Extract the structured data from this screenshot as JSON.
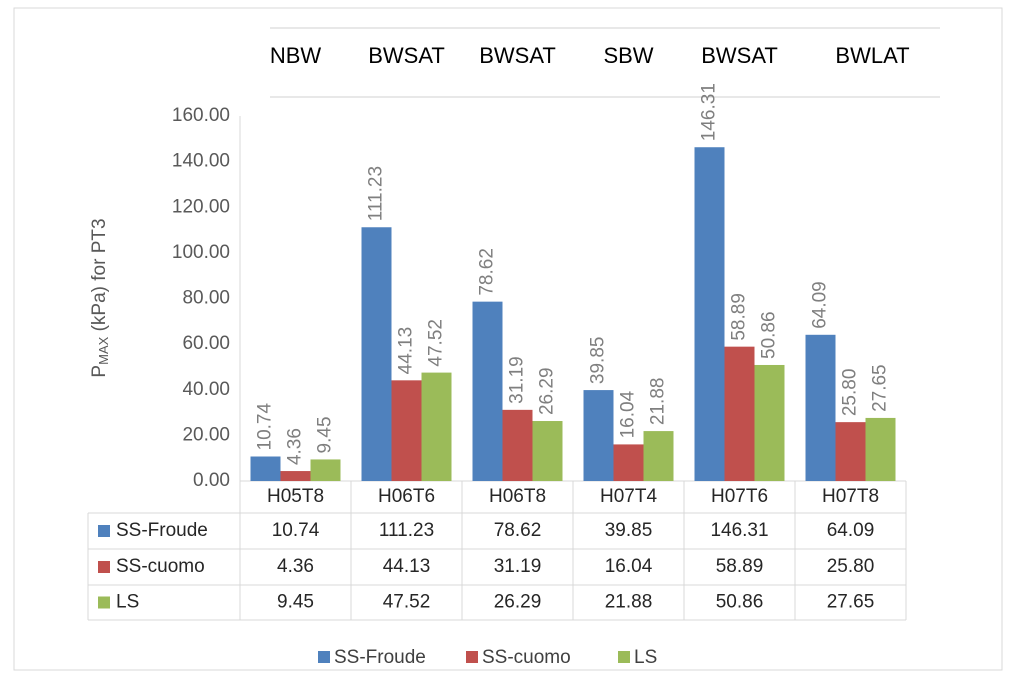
{
  "chart_data": {
    "type": "bar",
    "group_labels": [
      "NBW",
      "BWSAT",
      "BWSAT",
      "SBW",
      "BWSAT",
      "BWLAT"
    ],
    "ylabel_parts": [
      "P",
      "MAX",
      " (kPa) for PT3"
    ],
    "categories": [
      "H05T8",
      "H06T6",
      "H06T8",
      "H07T4",
      "H07T6",
      "H07T8"
    ],
    "series": [
      {
        "name": "SS-Froude",
        "color": "#4f81bd",
        "values": [
          10.74,
          111.23,
          78.62,
          39.85,
          146.31,
          64.09
        ],
        "value_labels": [
          "10.74",
          "111.23",
          "78.62",
          "39.85",
          "146.31",
          "64.09"
        ]
      },
      {
        "name": "SS-cuomo",
        "color": "#c0504d",
        "values": [
          4.36,
          44.13,
          31.19,
          16.04,
          58.89,
          25.8
        ],
        "value_labels": [
          "4.36",
          "44.13",
          "31.19",
          "16.04",
          "58.89",
          "25.80"
        ]
      },
      {
        "name": "LS",
        "color": "#9bbb59",
        "values": [
          9.45,
          47.52,
          26.29,
          21.88,
          50.86,
          27.65
        ],
        "value_labels": [
          "9.45",
          "47.52",
          "26.29",
          "21.88",
          "50.86",
          "27.65"
        ]
      }
    ],
    "ylim": [
      0,
      160
    ],
    "yticks": [
      {
        "value": 0,
        "label": "0.00"
      },
      {
        "value": 20,
        "label": "20.00"
      },
      {
        "value": 40,
        "label": "40.00"
      },
      {
        "value": 60,
        "label": "60.00"
      },
      {
        "value": 80,
        "label": "80.00"
      },
      {
        "value": 100,
        "label": "100.00"
      },
      {
        "value": 120,
        "label": "120.00"
      },
      {
        "value": 140,
        "label": "140.00"
      },
      {
        "value": 160,
        "label": "160.00"
      }
    ],
    "grid": false
  }
}
